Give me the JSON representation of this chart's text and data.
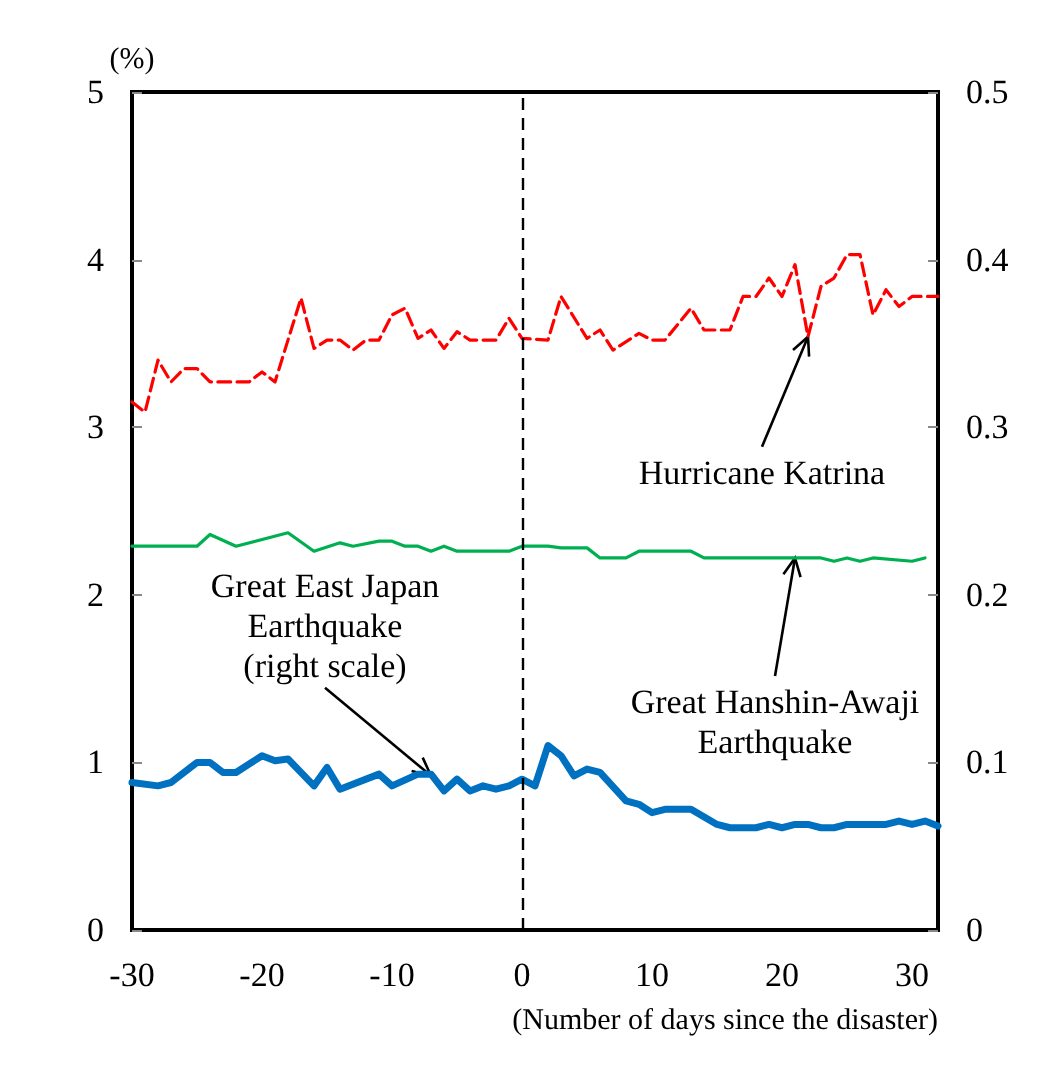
{
  "chart_data": {
    "type": "line",
    "ylabel": "(%)",
    "xlabel": "(Number of days since the disaster)",
    "xlim": [
      -30,
      32
    ],
    "xticks": [
      -30,
      -20,
      -10,
      0,
      10,
      20,
      30
    ],
    "ylim": [
      0,
      5
    ],
    "yticks": [
      0,
      1,
      2,
      3,
      4,
      5
    ],
    "y2lim": [
      0,
      0.5
    ],
    "y2ticks": [
      0,
      0.1,
      0.2,
      0.3,
      0.4,
      0.5
    ],
    "grid": false,
    "marker": "none",
    "ref_lines": [
      {
        "axis": "x",
        "value": 0,
        "color": "#000000",
        "line_style": "dashed"
      }
    ],
    "series": [
      {
        "color": "#ff0000",
        "line_style": "dashed",
        "x": [
          -30,
          -29,
          -28,
          -27,
          -26,
          -25,
          -24,
          -21,
          -20,
          -19,
          -17,
          -16,
          -15,
          -14,
          -13,
          -12,
          -11,
          -10,
          -9,
          -8,
          -7,
          -6,
          -5,
          -4,
          -2,
          -1,
          0,
          2,
          3,
          5,
          6,
          7,
          9,
          10,
          11,
          13,
          14,
          16,
          17,
          18,
          19,
          20,
          21,
          22,
          23,
          24,
          25,
          26,
          27,
          28,
          29,
          30,
          32
        ],
        "values": [
          3.15,
          3.09,
          3.4,
          3.27,
          3.35,
          3.35,
          3.27,
          3.27,
          3.33,
          3.27,
          3.77,
          3.47,
          3.52,
          3.52,
          3.46,
          3.52,
          3.52,
          3.67,
          3.71,
          3.53,
          3.58,
          3.47,
          3.57,
          3.52,
          3.52,
          3.65,
          3.53,
          3.52,
          3.78,
          3.53,
          3.58,
          3.46,
          3.56,
          3.52,
          3.52,
          3.71,
          3.58,
          3.58,
          3.78,
          3.78,
          3.89,
          3.78,
          3.97,
          3.54,
          3.84,
          3.89,
          4.03,
          4.03,
          3.67,
          3.82,
          3.72,
          3.78,
          3.78
        ]
      },
      {
        "color": "#00b050",
        "line_style": "solid",
        "x": [
          -30,
          -25,
          -24,
          -22,
          -18,
          -16,
          -14,
          -13,
          -11,
          -10,
          -9,
          -8,
          -7,
          -6,
          -5,
          -1,
          0,
          2,
          3,
          5,
          6,
          8,
          9,
          13,
          14,
          23,
          24,
          25,
          26,
          27,
          30,
          31
        ],
        "values": [
          2.29,
          2.29,
          2.36,
          2.29,
          2.37,
          2.26,
          2.31,
          2.29,
          2.32,
          2.32,
          2.29,
          2.29,
          2.26,
          2.29,
          2.26,
          2.26,
          2.29,
          2.29,
          2.28,
          2.28,
          2.22,
          2.22,
          2.26,
          2.26,
          2.22,
          2.22,
          2.2,
          2.22,
          2.2,
          2.22,
          2.2,
          2.22
        ]
      },
      {
        "color": "#0070c0",
        "line_style": "solid",
        "axis": "y2",
        "x": [
          -30,
          -28,
          -27,
          -25,
          -24,
          -23,
          -22,
          -20,
          -19,
          -18,
          -16,
          -15,
          -14,
          -11,
          -10,
          -8,
          -7,
          -6,
          -5,
          -4,
          -3,
          -2,
          -1,
          0,
          1,
          2,
          3,
          4,
          5,
          6,
          8,
          9,
          10,
          11,
          13,
          15,
          16,
          18,
          19,
          20,
          21,
          22,
          23,
          24,
          25,
          26,
          27,
          28,
          29,
          30,
          31,
          32
        ],
        "values": [
          0.088,
          0.086,
          0.088,
          0.1,
          0.1,
          0.094,
          0.094,
          0.104,
          0.101,
          0.102,
          0.086,
          0.097,
          0.084,
          0.093,
          0.086,
          0.093,
          0.093,
          0.083,
          0.09,
          0.083,
          0.086,
          0.084,
          0.086,
          0.09,
          0.086,
          0.11,
          0.104,
          0.092,
          0.096,
          0.094,
          0.077,
          0.075,
          0.07,
          0.072,
          0.072,
          0.063,
          0.061,
          0.061,
          0.063,
          0.061,
          0.063,
          0.063,
          0.061,
          0.061,
          0.063,
          0.063,
          0.063,
          0.063,
          0.065,
          0.063,
          0.065,
          0.062
        ]
      }
    ],
    "annotations": [
      {
        "text": "Hurricane Katrina",
        "x": 22,
        "y": 3.54
      },
      {
        "text": "Great Hanshin-Awaji\nEarthquake",
        "x": 21,
        "y": 2.22
      },
      {
        "text": "Great East Japan\nEarthquake\n(right scale)",
        "x": -7,
        "y": 0.92
      }
    ]
  }
}
